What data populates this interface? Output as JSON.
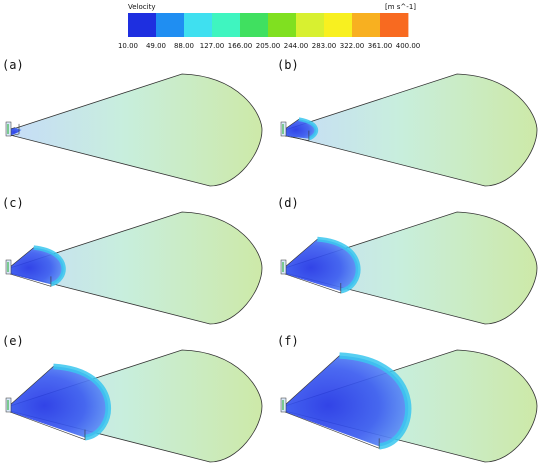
{
  "legend": {
    "title": "Velocity",
    "unit": "[m s^-1]",
    "ticks": [
      "10.00",
      "49.00",
      "88.00",
      "127.00",
      "166.00",
      "205.00",
      "244.00",
      "283.00",
      "322.00",
      "361.00",
      "400.00"
    ],
    "colors": [
      "#1e2fe0",
      "#1f8ef2",
      "#3fe0f0",
      "#3ff5c0",
      "#40e060",
      "#80e020",
      "#d8f030",
      "#f8f020",
      "#f8b020",
      "#f86a20"
    ]
  },
  "panels": [
    {
      "label": "(a)",
      "swept": 0.04
    },
    {
      "label": "(b)",
      "swept": 0.18
    },
    {
      "label": "(c)",
      "swept": 0.34
    },
    {
      "label": "(d)",
      "swept": 0.48
    },
    {
      "label": "(e)",
      "swept": 0.66
    },
    {
      "label": "(f)",
      "swept": 0.84
    }
  ]
}
